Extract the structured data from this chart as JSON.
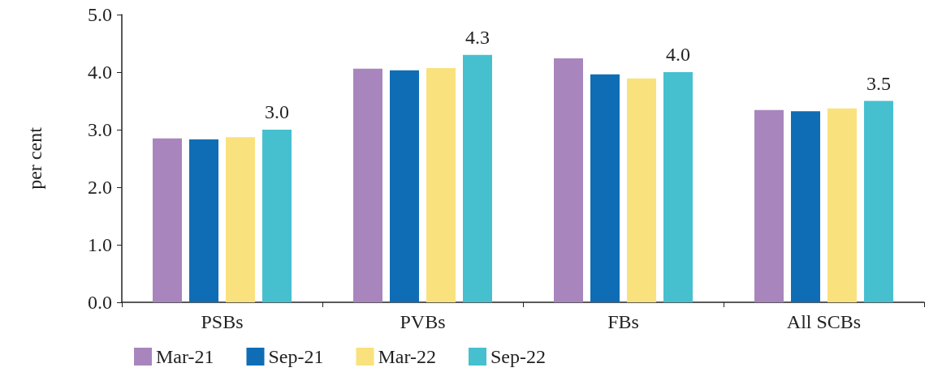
{
  "chart_data": {
    "type": "bar",
    "ylabel": "per cent",
    "categories": [
      "PSBs",
      "PVBs",
      "FBs",
      "All SCBs"
    ],
    "series": [
      {
        "name": "Mar-21",
        "color": "#a985bd",
        "values": [
          2.85,
          4.06,
          4.24,
          3.34
        ]
      },
      {
        "name": "Sep-21",
        "color": "#0f6db5",
        "values": [
          2.83,
          4.03,
          3.96,
          3.32
        ]
      },
      {
        "name": "Mar-22",
        "color": "#f9e27d",
        "values": [
          2.87,
          4.07,
          3.89,
          3.37
        ]
      },
      {
        "name": "Sep-22",
        "color": "#46c0cf",
        "values": [
          3.0,
          4.3,
          4.0,
          3.5
        ],
        "value_labels": [
          "3.0",
          "4.3",
          "4.0",
          "3.5"
        ]
      }
    ],
    "ylim": [
      0,
      5
    ],
    "yticks": [
      {
        "value": 0,
        "label": "0.0"
      },
      {
        "value": 1,
        "label": "1.0"
      },
      {
        "value": 2,
        "label": "2.0"
      },
      {
        "value": 3,
        "label": "3.0"
      },
      {
        "value": 4,
        "label": "4.0"
      },
      {
        "value": 5,
        "label": "5.0"
      }
    ],
    "grid": false,
    "legend": "bottom"
  }
}
